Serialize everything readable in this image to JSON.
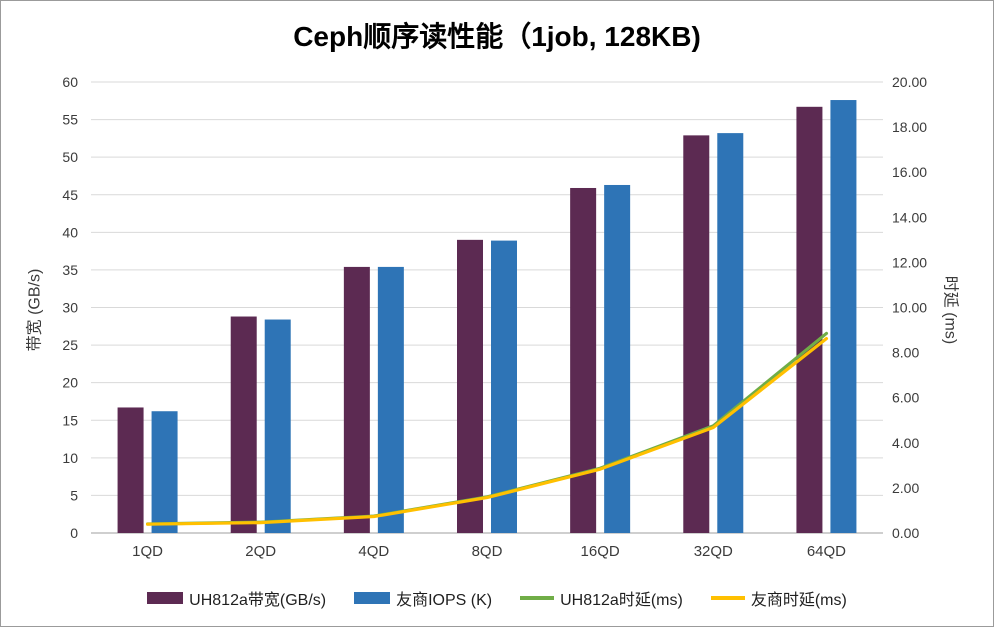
{
  "chart_data": {
    "type": "combo-bar-line",
    "title": "Ceph顺序读性能（1job, 128KB)",
    "categories": [
      "1QD",
      "2QD",
      "4QD",
      "8QD",
      "16QD",
      "32QD",
      "64QD"
    ],
    "bar_series": [
      {
        "name": "UH812a带宽(GB/s)",
        "axis": "left",
        "color": "#5C2A52",
        "values": [
          16.7,
          28.8,
          35.4,
          39.0,
          45.9,
          52.9,
          56.7
        ]
      },
      {
        "name": "友商IOPS (K)",
        "axis": "left",
        "color": "#2E74B6",
        "values": [
          16.2,
          28.4,
          35.4,
          38.9,
          46.3,
          53.2,
          57.6
        ]
      }
    ],
    "line_series": [
      {
        "name": "UH812a时延(ms)",
        "axis": "right",
        "color": "#70AD47",
        "values": [
          0.4,
          0.48,
          0.75,
          1.6,
          2.87,
          4.75,
          8.85
        ]
      },
      {
        "name": "友商时延(ms)",
        "axis": "right",
        "color": "#FFC000",
        "values": [
          0.39,
          0.46,
          0.73,
          1.57,
          2.83,
          4.68,
          8.62
        ]
      }
    ],
    "left_axis": {
      "title": "带宽 (GB/s)",
      "min": 0,
      "max": 60,
      "step": 5,
      "ticks": [
        "0",
        "5",
        "10",
        "15",
        "20",
        "25",
        "30",
        "35",
        "40",
        "45",
        "50",
        "55",
        "60"
      ]
    },
    "right_axis": {
      "title": "时延 (ms)",
      "min": 0,
      "max": 20,
      "step": 2,
      "ticks": [
        "0.00",
        "2.00",
        "4.00",
        "6.00",
        "8.00",
        "10.00",
        "12.00",
        "14.00",
        "16.00",
        "18.00",
        "20.00"
      ]
    },
    "grid": true,
    "legend_position": "bottom",
    "colors": {
      "gridline": "#D9D9D9",
      "axis_line": "#BFBFBF",
      "tick_text": "#3b3b3b",
      "title_text": "#000000",
      "border": "#9b9b9b"
    }
  }
}
